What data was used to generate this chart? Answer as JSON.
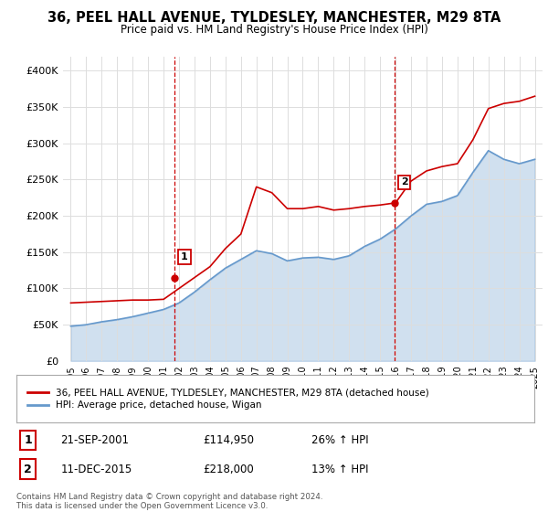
{
  "title": "36, PEEL HALL AVENUE, TYLDESLEY, MANCHESTER, M29 8TA",
  "subtitle": "Price paid vs. HM Land Registry's House Price Index (HPI)",
  "years": [
    1995,
    1996,
    1997,
    1998,
    1999,
    2000,
    2001,
    2002,
    2003,
    2004,
    2005,
    2006,
    2007,
    2008,
    2009,
    2010,
    2011,
    2012,
    2013,
    2014,
    2015,
    2016,
    2017,
    2018,
    2019,
    2020,
    2021,
    2022,
    2023,
    2024,
    2025
  ],
  "hpi_values": [
    48000,
    50000,
    54000,
    57000,
    61000,
    66000,
    71000,
    80000,
    95000,
    112000,
    128000,
    140000,
    152000,
    148000,
    138000,
    142000,
    143000,
    140000,
    145000,
    158000,
    168000,
    182000,
    200000,
    216000,
    220000,
    228000,
    260000,
    290000,
    278000,
    272000,
    278000
  ],
  "price_values": [
    80000,
    81000,
    82000,
    83000,
    84000,
    84000,
    85000,
    100000,
    115000,
    130000,
    155000,
    175000,
    240000,
    232000,
    210000,
    210000,
    213000,
    208000,
    210000,
    213000,
    215000,
    218000,
    248000,
    262000,
    268000,
    272000,
    305000,
    348000,
    355000,
    358000,
    365000
  ],
  "sale1_year": 2001.72,
  "sale1_price": 114950,
  "sale1_label": "1",
  "sale1_date": "21-SEP-2001",
  "sale1_amount": "£114,950",
  "sale1_hpi": "26% ↑ HPI",
  "sale2_year": 2015.94,
  "sale2_price": 218000,
  "sale2_label": "2",
  "sale2_date": "11-DEC-2015",
  "sale2_amount": "£218,000",
  "sale2_hpi": "13% ↑ HPI",
  "legend1": "36, PEEL HALL AVENUE, TYLDESLEY, MANCHESTER, M29 8TA (detached house)",
  "legend2": "HPI: Average price, detached house, Wigan",
  "footer": "Contains HM Land Registry data © Crown copyright and database right 2024.\nThis data is licensed under the Open Government Licence v3.0.",
  "price_color": "#cc0000",
  "hpi_color": "#6699cc",
  "ylim": [
    0,
    420000
  ],
  "yticks": [
    0,
    50000,
    100000,
    150000,
    200000,
    250000,
    300000,
    350000,
    400000
  ],
  "ytick_labels": [
    "£0",
    "£50K",
    "£100K",
    "£150K",
    "£200K",
    "£250K",
    "£300K",
    "£350K",
    "£400K"
  ],
  "xtick_years": [
    1995,
    1996,
    1997,
    1998,
    1999,
    2000,
    2001,
    2002,
    2003,
    2004,
    2005,
    2006,
    2007,
    2008,
    2009,
    2010,
    2011,
    2012,
    2013,
    2014,
    2015,
    2016,
    2017,
    2018,
    2019,
    2020,
    2021,
    2022,
    2023,
    2024,
    2025
  ],
  "bg_color": "#ffffff",
  "grid_color": "#dddddd"
}
